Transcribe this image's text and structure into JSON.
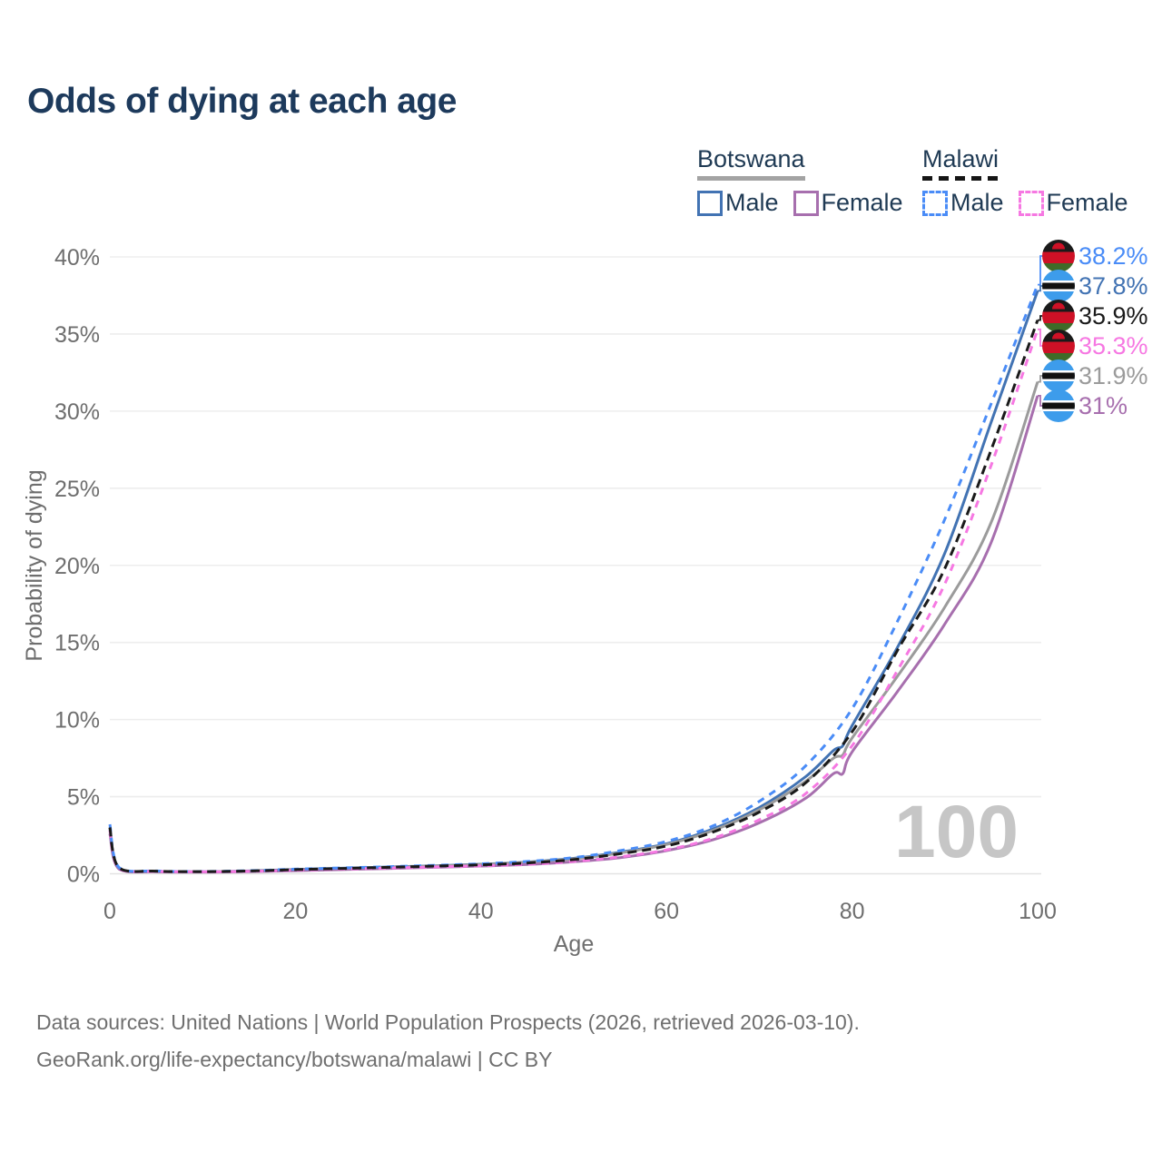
{
  "title": "Odds of dying at each age",
  "legend": {
    "groups": [
      {
        "country": "Botswana",
        "line_style": "solid",
        "underline_color": "#a3a3a3",
        "items": [
          {
            "label": "Male",
            "color": "#4273b3"
          },
          {
            "label": "Female",
            "color": "#a76fae"
          }
        ]
      },
      {
        "country": "Malawi",
        "line_style": "dashed",
        "underline_color": "#151515",
        "items": [
          {
            "label": "Male",
            "color": "#4a8cf7"
          },
          {
            "label": "Female",
            "color": "#f678e2"
          }
        ]
      }
    ]
  },
  "chart_data": {
    "type": "line",
    "title": "Odds of dying at each age",
    "xlabel": "Age",
    "ylabel": "Probability of dying",
    "xlim": [
      0,
      100
    ],
    "ylim_pct": [
      0,
      40
    ],
    "grid": "horizontal",
    "watermark": "100",
    "xticks": [
      {
        "v": 0,
        "label": "0"
      },
      {
        "v": 20,
        "label": "20"
      },
      {
        "v": 40,
        "label": "40"
      },
      {
        "v": 60,
        "label": "60"
      },
      {
        "v": 80,
        "label": "80"
      },
      {
        "v": 100,
        "label": "100"
      }
    ],
    "yticks": [
      {
        "v": 0,
        "label": "0%"
      },
      {
        "v": 5,
        "label": "5%"
      },
      {
        "v": 10,
        "label": "10%"
      },
      {
        "v": 15,
        "label": "15%"
      },
      {
        "v": 20,
        "label": "20%"
      },
      {
        "v": 25,
        "label": "25%"
      },
      {
        "v": 30,
        "label": "30%"
      },
      {
        "v": 35,
        "label": "35%"
      },
      {
        "v": 40,
        "label": "40%"
      }
    ],
    "series": [
      {
        "id": "botswana-male",
        "name": "Botswana Male",
        "country": "Botswana",
        "sex": "male",
        "color": "#4273b3",
        "dash": "solid",
        "flag": "botswana",
        "end_label": "37.8%",
        "end_value_pct": 37.8,
        "points": [
          [
            0,
            3.0
          ],
          [
            1,
            0.36
          ],
          [
            5,
            0.16
          ],
          [
            10,
            0.13
          ],
          [
            15,
            0.18
          ],
          [
            20,
            0.28
          ],
          [
            25,
            0.36
          ],
          [
            30,
            0.44
          ],
          [
            35,
            0.52
          ],
          [
            40,
            0.62
          ],
          [
            45,
            0.76
          ],
          [
            50,
            1.0
          ],
          [
            55,
            1.4
          ],
          [
            60,
            1.95
          ],
          [
            65,
            2.9
          ],
          [
            70,
            4.3
          ],
          [
            75,
            6.3
          ],
          [
            78,
            8.0
          ],
          [
            79,
            8.3
          ],
          [
            80,
            9.6
          ],
          [
            85,
            14.8
          ],
          [
            90,
            20.8
          ],
          [
            95,
            29.3
          ],
          [
            100,
            37.8
          ]
        ]
      },
      {
        "id": "botswana-all",
        "name": "Botswana",
        "country": "Botswana",
        "sex": "all",
        "color": "#9b9b9b",
        "dash": "solid",
        "flag": "botswana",
        "end_label": "31.9%",
        "end_value_pct": 31.9,
        "points": [
          [
            0,
            2.85
          ],
          [
            1,
            0.34
          ],
          [
            5,
            0.15
          ],
          [
            10,
            0.12
          ],
          [
            15,
            0.17
          ],
          [
            20,
            0.26
          ],
          [
            25,
            0.34
          ],
          [
            30,
            0.42
          ],
          [
            35,
            0.5
          ],
          [
            40,
            0.6
          ],
          [
            45,
            0.74
          ],
          [
            50,
            0.97
          ],
          [
            55,
            1.35
          ],
          [
            60,
            1.9
          ],
          [
            65,
            2.8
          ],
          [
            70,
            4.15
          ],
          [
            75,
            6.0
          ],
          [
            78,
            7.5
          ],
          [
            79,
            7.7
          ],
          [
            80,
            8.8
          ],
          [
            85,
            12.9
          ],
          [
            90,
            17.3
          ],
          [
            95,
            22.8
          ],
          [
            100,
            31.9
          ]
        ]
      },
      {
        "id": "botswana-female",
        "name": "Botswana Female",
        "country": "Botswana",
        "sex": "female",
        "color": "#a76fae",
        "dash": "solid",
        "flag": "botswana",
        "end_label": "31%",
        "end_value_pct": 31,
        "points": [
          [
            0,
            2.6
          ],
          [
            1,
            0.3
          ],
          [
            5,
            0.13
          ],
          [
            10,
            0.11
          ],
          [
            15,
            0.14
          ],
          [
            20,
            0.2
          ],
          [
            25,
            0.27
          ],
          [
            30,
            0.34
          ],
          [
            35,
            0.42
          ],
          [
            40,
            0.5
          ],
          [
            45,
            0.6
          ],
          [
            50,
            0.78
          ],
          [
            55,
            1.05
          ],
          [
            60,
            1.5
          ],
          [
            65,
            2.2
          ],
          [
            70,
            3.3
          ],
          [
            75,
            4.9
          ],
          [
            78,
            6.5
          ],
          [
            79,
            6.5
          ],
          [
            80,
            7.9
          ],
          [
            85,
            11.9
          ],
          [
            90,
            16.2
          ],
          [
            95,
            21.5
          ],
          [
            100,
            31.0
          ]
        ]
      },
      {
        "id": "malawi-male",
        "name": "Malawi Male",
        "country": "Malawi",
        "sex": "male",
        "color": "#4a8cf7",
        "dash": "dashed",
        "flag": "malawi",
        "end_label": "38.2%",
        "end_value_pct": 38.2,
        "points": [
          [
            0,
            3.2
          ],
          [
            1,
            0.4
          ],
          [
            5,
            0.18
          ],
          [
            10,
            0.15
          ],
          [
            15,
            0.2
          ],
          [
            20,
            0.3
          ],
          [
            25,
            0.38
          ],
          [
            30,
            0.46
          ],
          [
            35,
            0.55
          ],
          [
            40,
            0.65
          ],
          [
            45,
            0.8
          ],
          [
            50,
            1.05
          ],
          [
            55,
            1.5
          ],
          [
            60,
            2.1
          ],
          [
            65,
            3.1
          ],
          [
            70,
            4.7
          ],
          [
            75,
            7.0
          ],
          [
            80,
            10.7
          ],
          [
            85,
            16.5
          ],
          [
            90,
            23.0
          ],
          [
            95,
            30.5
          ],
          [
            100,
            38.2
          ]
        ]
      },
      {
        "id": "malawi-female",
        "name": "Malawi Female",
        "country": "Malawi",
        "sex": "female",
        "color": "#f678e2",
        "dash": "dashed",
        "flag": "malawi",
        "end_label": "35.3%",
        "end_value_pct": 35.3,
        "points": [
          [
            0,
            2.8
          ],
          [
            1,
            0.35
          ],
          [
            5,
            0.16
          ],
          [
            10,
            0.13
          ],
          [
            15,
            0.16
          ],
          [
            20,
            0.23
          ],
          [
            25,
            0.3
          ],
          [
            30,
            0.37
          ],
          [
            35,
            0.44
          ],
          [
            40,
            0.52
          ],
          [
            45,
            0.62
          ],
          [
            50,
            0.8
          ],
          [
            55,
            1.1
          ],
          [
            60,
            1.55
          ],
          [
            65,
            2.3
          ],
          [
            70,
            3.5
          ],
          [
            75,
            5.2
          ],
          [
            80,
            8.3
          ],
          [
            85,
            13.3
          ],
          [
            90,
            18.8
          ],
          [
            95,
            26.5
          ],
          [
            100,
            35.3
          ]
        ]
      },
      {
        "id": "malawi-all",
        "name": "Malawi",
        "country": "Malawi",
        "sex": "all",
        "color": "#1a1a1a",
        "dash": "dashed",
        "flag": "malawi",
        "end_label": "35.9%",
        "end_value_pct": 35.9,
        "points": [
          [
            0,
            3.0
          ],
          [
            1,
            0.38
          ],
          [
            5,
            0.17
          ],
          [
            10,
            0.14
          ],
          [
            15,
            0.18
          ],
          [
            20,
            0.27
          ],
          [
            25,
            0.34
          ],
          [
            30,
            0.42
          ],
          [
            35,
            0.5
          ],
          [
            40,
            0.58
          ],
          [
            45,
            0.7
          ],
          [
            50,
            0.92
          ],
          [
            55,
            1.3
          ],
          [
            60,
            1.8
          ],
          [
            65,
            2.7
          ],
          [
            70,
            4.0
          ],
          [
            75,
            5.9
          ],
          [
            80,
            9.2
          ],
          [
            85,
            14.6
          ],
          [
            90,
            19.8
          ],
          [
            95,
            27.5
          ],
          [
            100,
            35.9
          ]
        ]
      }
    ]
  },
  "footer": {
    "line1": "Data sources: United Nations | World Population Prospects (2026, retrieved 2026-03-10).",
    "line2": "GeoRank.org/life-expectancy/botswana/malawi | CC BY"
  }
}
